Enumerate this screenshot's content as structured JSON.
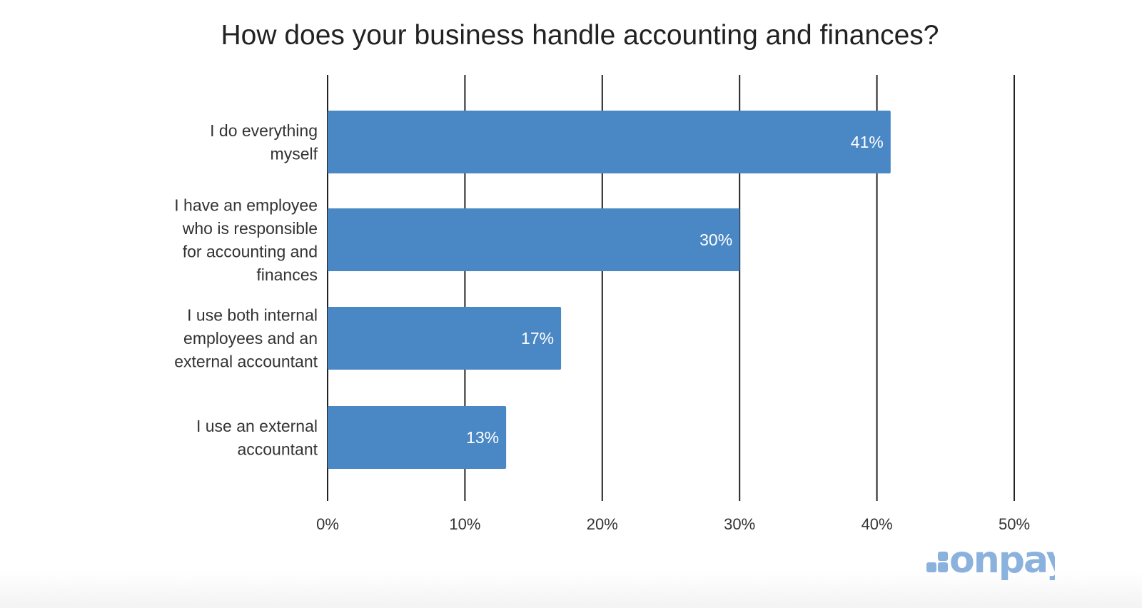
{
  "chart_data": {
    "type": "bar",
    "orientation": "horizontal",
    "title": "How does your business handle accounting and finances?",
    "categories": [
      [
        "I do everything",
        "myself"
      ],
      [
        "I have an employee",
        "who is responsible",
        "for accounting and",
        "finances"
      ],
      [
        "I use both internal",
        "employees and an",
        "external accountant"
      ],
      [
        "I use an external",
        "accountant"
      ]
    ],
    "values": [
      41,
      30,
      17,
      13
    ],
    "data_labels": [
      "41%",
      "30%",
      "17%",
      "13%"
    ],
    "xlim": [
      0,
      50
    ],
    "xticks": [
      0,
      10,
      20,
      30,
      40,
      50
    ],
    "xtick_labels": [
      "0%",
      "10%",
      "20%",
      "30%",
      "40%",
      "50%"
    ],
    "grid": true,
    "bar_color": "#4A87C5",
    "grid_color": "#222222"
  },
  "logo": {
    "text": "onpay",
    "color": "#8AB2DD"
  }
}
